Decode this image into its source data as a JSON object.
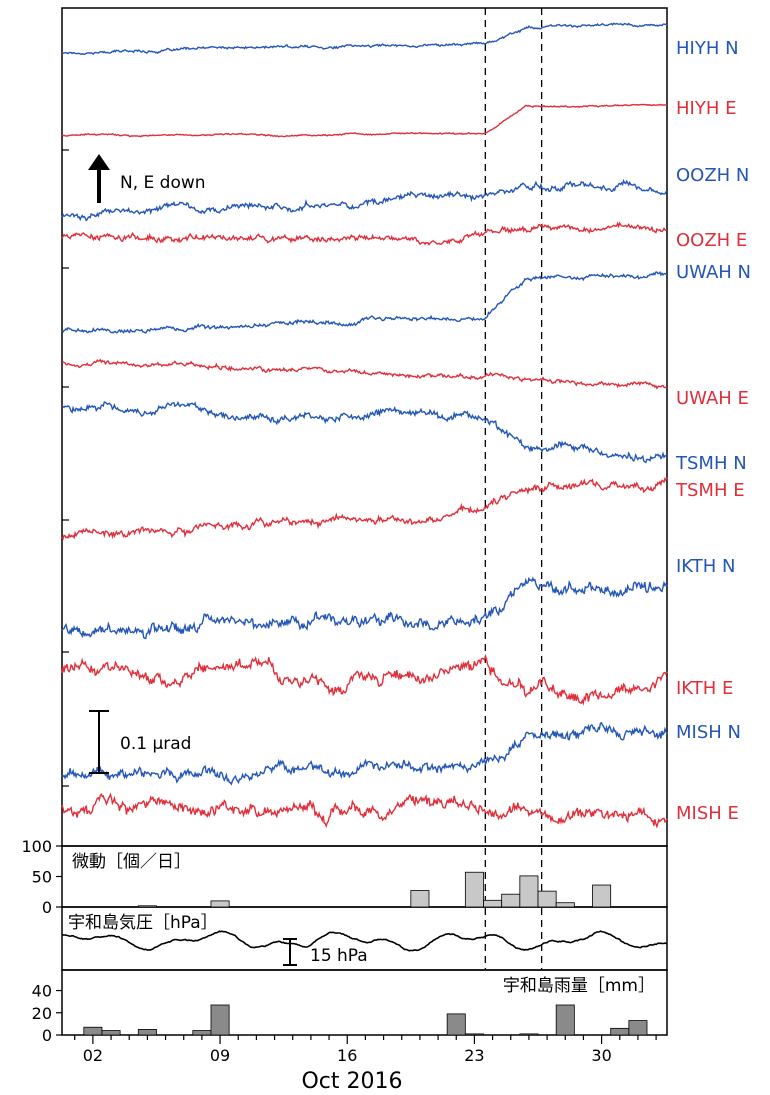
{
  "chart_data": {
    "type": "line",
    "xlabel": "Oct 2016",
    "date_ticks": [
      "02",
      "09",
      "16",
      "23",
      "30"
    ],
    "event_markers_day": [
      23.6,
      26.7
    ],
    "colors": {
      "N": "#2456b8",
      "E": "#e02f3a"
    },
    "traces": [
      {
        "name": "HIYH N",
        "component": "N",
        "start": 0.1,
        "end": 0.35,
        "onset": 23.6,
        "step": 0.28,
        "noise": 0.025
      },
      {
        "name": "HIYH E",
        "component": "E",
        "start": 0.05,
        "end": 0.1,
        "onset": 23.6,
        "step": 0.5,
        "noise": 0.015
      },
      {
        "name": "OOZH N",
        "component": "N",
        "start": -0.2,
        "end": 0.35,
        "onset": 23.6,
        "step": 0.1,
        "noise": 0.06
      },
      {
        "name": "OOZH E",
        "component": "E",
        "start": 0.05,
        "end": -0.05,
        "onset": 22.0,
        "step": 0.2,
        "noise": 0.06
      },
      {
        "name": "UWAH N",
        "component": "N",
        "start": -0.1,
        "end": 0.25,
        "onset": 23.6,
        "step": 0.7,
        "noise": 0.04
      },
      {
        "name": "UWAH E",
        "component": "E",
        "start": 0.05,
        "end": -0.35,
        "onset": 23.6,
        "step": -0.05,
        "noise": 0.04
      },
      {
        "name": "TSMH N",
        "component": "N",
        "start": 0.15,
        "end": -0.15,
        "onset": 23.6,
        "step": -0.55,
        "noise": 0.07
      },
      {
        "name": "TSMH E",
        "component": "E",
        "start": -0.35,
        "end": 0.35,
        "onset": 23.6,
        "step": 0.35,
        "noise": 0.07
      },
      {
        "name": "IKTH N",
        "component": "N",
        "start": -0.25,
        "end": 0.1,
        "onset": 23.6,
        "step": 0.6,
        "noise": 0.12
      },
      {
        "name": "IKTH E",
        "component": "E",
        "start": 0.15,
        "end": 0.05,
        "onset": 23.6,
        "step": -0.25,
        "noise": 0.12
      },
      {
        "name": "MISH N",
        "component": "N",
        "start": -0.2,
        "end": 0.1,
        "onset": 23.6,
        "step": 0.6,
        "noise": 0.1
      },
      {
        "name": "MISH E",
        "component": "E",
        "start": 0.1,
        "end": 0.05,
        "onset": 23.6,
        "step": -0.1,
        "noise": 0.12
      }
    ],
    "scale_bar": "0.1 µrad",
    "arrow_label": "N, E down",
    "tremor": {
      "title": "微動［個／日］",
      "ylim": [
        0,
        100
      ],
      "yticks": [
        0,
        50,
        100
      ],
      "bars": [
        {
          "day": 5,
          "value": 2
        },
        {
          "day": 9,
          "value": 10
        },
        {
          "day": 20,
          "value": 27
        },
        {
          "day": 23,
          "value": 57
        },
        {
          "day": 24,
          "value": 11
        },
        {
          "day": 25,
          "value": 21
        },
        {
          "day": 26,
          "value": 51
        },
        {
          "day": 27,
          "value": 26
        },
        {
          "day": 28,
          "value": 7
        },
        {
          "day": 30,
          "value": 36
        }
      ]
    },
    "pressure": {
      "title": "宇和島気圧［hPa］",
      "scale_bar": "15 hPa"
    },
    "rain": {
      "title": "宇和島雨量［mm］",
      "ylim": [
        0,
        45
      ],
      "yticks": [
        0,
        20,
        40
      ],
      "bars": [
        {
          "day": 2,
          "value": 7
        },
        {
          "day": 3,
          "value": 4
        },
        {
          "day": 5,
          "value": 5
        },
        {
          "day": 8,
          "value": 4
        },
        {
          "day": 9,
          "value": 27
        },
        {
          "day": 22,
          "value": 19
        },
        {
          "day": 23,
          "value": 1
        },
        {
          "day": 26,
          "value": 1
        },
        {
          "day": 28,
          "value": 27
        },
        {
          "day": 31,
          "value": 6
        },
        {
          "day": 32,
          "value": 13
        }
      ]
    }
  }
}
